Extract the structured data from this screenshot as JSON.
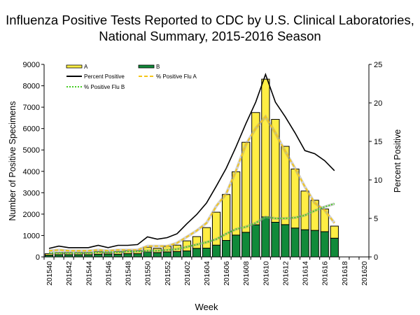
{
  "chart_data": {
    "type": "bar",
    "title": [
      "Influenza Positive Tests Reported to CDC by U.S. Clinical Laboratories,",
      "National Summary, 2015-2016 Season"
    ],
    "xlabel": "Week",
    "ylabel": "Number of Positive Specimens",
    "y2label": "Percent Positive",
    "ylim": [
      0,
      9000
    ],
    "y2lim": [
      0,
      25
    ],
    "yticks": [
      0,
      1000,
      2000,
      3000,
      4000,
      5000,
      6000,
      7000,
      8000,
      9000
    ],
    "y2ticks": [
      0,
      5,
      10,
      15,
      20,
      25
    ],
    "grid": false,
    "legend": "top-left",
    "categories": [
      "201540",
      "201541",
      "201542",
      "201543",
      "201544",
      "201545",
      "201546",
      "201547",
      "201548",
      "201549",
      "201550",
      "201551",
      "201552",
      "201601",
      "201602",
      "201603",
      "201604",
      "201605",
      "201606",
      "201607",
      "201608",
      "201609",
      "201610",
      "201611",
      "201612",
      "201613",
      "201614",
      "201615",
      "201616",
      "201617",
      "201618",
      "201619",
      "201620"
    ],
    "tick_labels": [
      "201540",
      "201542",
      "201544",
      "201546",
      "201548",
      "201550",
      "201552",
      "201602",
      "201604",
      "201606",
      "201608",
      "201610",
      "201612",
      "201614",
      "201616",
      "201618",
      "201620"
    ],
    "bar_series": [
      {
        "name": "A",
        "color": "#ffee44",
        "stacked": true,
        "values": [
          70,
          100,
          100,
          100,
          100,
          130,
          70,
          130,
          150,
          150,
          220,
          200,
          270,
          300,
          470,
          550,
          960,
          1540,
          2150,
          2960,
          4210,
          5250,
          6440,
          4810,
          3660,
          2760,
          1810,
          1410,
          1060,
          565,
          null,
          null,
          null
        ]
      },
      {
        "name": "B",
        "color": "#118a3a",
        "stacked": true,
        "values": [
          80,
          100,
          100,
          100,
          100,
          120,
          130,
          120,
          150,
          150,
          230,
          200,
          230,
          250,
          280,
          400,
          410,
          550,
          770,
          1020,
          1150,
          1500,
          1870,
          1620,
          1510,
          1350,
          1270,
          1240,
          1180,
          875,
          null,
          null,
          null
        ]
      }
    ],
    "line_series": [
      {
        "name": "Percent Positive",
        "color": "#000000",
        "style": "solid",
        "values": [
          1.1,
          1.4,
          1.2,
          1.2,
          1.2,
          1.5,
          1.2,
          1.5,
          1.5,
          1.6,
          2.6,
          2.3,
          2.5,
          3.0,
          4.3,
          5.5,
          7.0,
          9.2,
          11.5,
          14.3,
          17.3,
          20.1,
          23.7,
          20.1,
          18.2,
          16.1,
          13.8,
          13.4,
          12.5,
          11.2,
          null,
          null,
          null
        ]
      },
      {
        "name": "% Positive Flu A",
        "color": "#f5c518",
        "style": "dashed",
        "values": [
          0.8,
          0.9,
          0.8,
          0.8,
          0.8,
          0.9,
          0.8,
          0.9,
          0.9,
          0.9,
          1.4,
          1.4,
          1.4,
          1.8,
          2.6,
          3.4,
          4.4,
          6.6,
          8.2,
          11.2,
          14.6,
          16.7,
          18.2,
          16.1,
          13.7,
          11.5,
          9.1,
          7.0,
          6.1,
          4.4,
          null,
          null,
          null
        ]
      },
      {
        "name": "% Positive Flu B",
        "color": "#44cc22",
        "style": "dotted",
        "values": [
          0.5,
          0.5,
          0.5,
          0.5,
          0.5,
          0.6,
          0.6,
          0.6,
          0.7,
          0.7,
          0.8,
          0.8,
          0.9,
          1.0,
          1.3,
          1.6,
          1.9,
          2.3,
          3.0,
          3.6,
          3.9,
          4.4,
          5.2,
          5.0,
          5.0,
          5.1,
          5.4,
          6.0,
          6.5,
          6.9,
          null,
          null,
          null
        ]
      }
    ]
  }
}
